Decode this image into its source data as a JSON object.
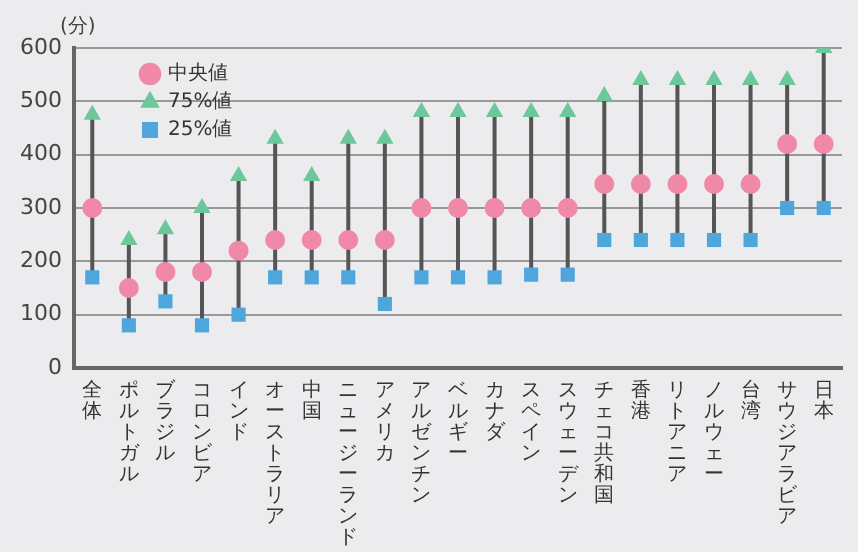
{
  "chart_data": {
    "type": "scatter",
    "ylabel": "(分)",
    "categories": [
      "全体",
      "ポルトガル",
      "ブラジル",
      "コロンビア",
      "インド",
      "オーストラリア",
      "中国",
      "ニュージーランド",
      "アメリカ",
      "アルゼンチン",
      "ベルギー",
      "カナダ",
      "スペイン",
      "スウェーデン",
      "チェコ共和国",
      "香港",
      "リトアニア",
      "ノルウェー",
      "台湾",
      "サウジアラビア",
      "日本"
    ],
    "series": [
      {
        "name": "中央値",
        "color": "#f088a8",
        "marker": "circle",
        "values": [
          300,
          150,
          180,
          180,
          220,
          240,
          240,
          240,
          240,
          300,
          300,
          300,
          300,
          300,
          345,
          345,
          345,
          345,
          345,
          420,
          420
        ]
      },
      {
        "name": "75%値",
        "color": "#6cc79a",
        "marker": "triangle",
        "values": [
          475,
          240,
          260,
          300,
          360,
          430,
          360,
          430,
          430,
          480,
          480,
          480,
          480,
          480,
          510,
          540,
          540,
          540,
          540,
          540,
          600
        ]
      },
      {
        "name": "25%値",
        "color": "#4ea6dc",
        "marker": "square",
        "values": [
          170,
          80,
          125,
          80,
          100,
          170,
          170,
          170,
          120,
          170,
          170,
          170,
          175,
          175,
          240,
          240,
          240,
          240,
          240,
          300,
          300
        ]
      }
    ],
    "ylim": [
      0,
      600
    ],
    "yticks": [
      0,
      100,
      200,
      300,
      400,
      500,
      600
    ],
    "grid": "y",
    "legend": "top left"
  }
}
